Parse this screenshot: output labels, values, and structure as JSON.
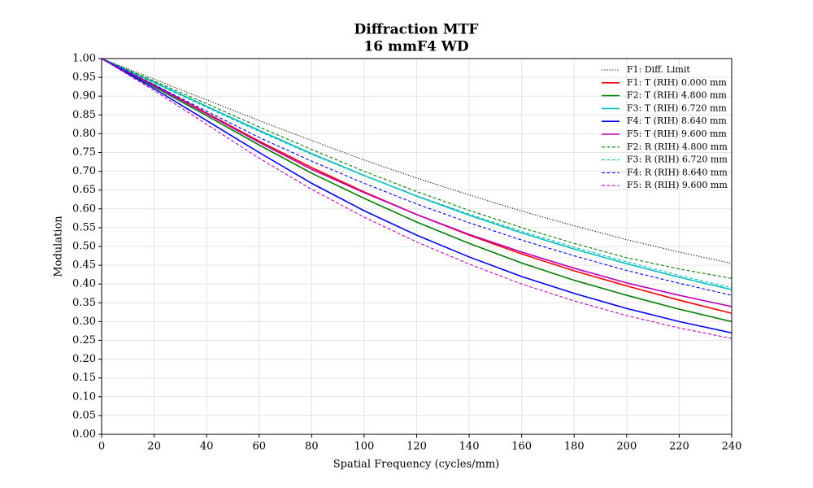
{
  "chart_data": {
    "type": "line",
    "title": "Diffraction MTF",
    "subtitle": "16 mmF4 WD",
    "xlabel": "Spatial Frequency (cycles/mm)",
    "ylabel": "Modulation",
    "x": [
      0,
      20,
      40,
      60,
      80,
      100,
      120,
      140,
      160,
      180,
      200,
      220,
      240
    ],
    "xlim": [
      0,
      240
    ],
    "xticks": [
      0,
      20,
      40,
      60,
      80,
      100,
      120,
      140,
      160,
      180,
      200,
      220,
      240
    ],
    "ylim": [
      0,
      1
    ],
    "yticks": [
      {
        "value": 0,
        "label": "0.00"
      },
      {
        "value": 0.05,
        "label": "0.05"
      },
      {
        "value": 0.1,
        "label": "0.10"
      },
      {
        "value": 0.15,
        "label": "0.15"
      },
      {
        "value": 0.2,
        "label": "0.20"
      },
      {
        "value": 0.25,
        "label": "0.25"
      },
      {
        "value": 0.3,
        "label": "0.30"
      },
      {
        "value": 0.35,
        "label": "0.35"
      },
      {
        "value": 0.4,
        "label": "0.40"
      },
      {
        "value": 0.45,
        "label": "0.45"
      },
      {
        "value": 0.5,
        "label": "0.50"
      },
      {
        "value": 0.55,
        "label": "0.55"
      },
      {
        "value": 0.6,
        "label": "0.60"
      },
      {
        "value": 0.65,
        "label": "0.65"
      },
      {
        "value": 0.7,
        "label": "0.70"
      },
      {
        "value": 0.75,
        "label": "0.75"
      },
      {
        "value": 0.8,
        "label": "0.80"
      },
      {
        "value": 0.85,
        "label": "0.85"
      },
      {
        "value": 0.9,
        "label": "0.90"
      },
      {
        "value": 0.95,
        "label": "0.95"
      },
      {
        "value": 1,
        "label": "1.00"
      }
    ],
    "grid": true,
    "legend": "upper-right",
    "series": [
      {
        "name": "F1: Diff. Limit",
        "color": "#000000",
        "linestyle": "dotted",
        "values": [
          1,
          0.945,
          0.89,
          0.835,
          0.782,
          0.73,
          0.682,
          0.637,
          0.594,
          0.555,
          0.518,
          0.485,
          0.455
        ]
      },
      {
        "name": "F1: T (RIH) 0.000 mm",
        "color": "#ff0000",
        "linestyle": "solid",
        "values": [
          1,
          0.93,
          0.855,
          0.78,
          0.71,
          0.645,
          0.585,
          0.53,
          0.48,
          0.435,
          0.395,
          0.357,
          0.322
        ]
      },
      {
        "name": "F2: T (RIH) 4.800 mm",
        "color": "#008000",
        "linestyle": "solid",
        "values": [
          1,
          0.925,
          0.848,
          0.77,
          0.695,
          0.628,
          0.565,
          0.508,
          0.456,
          0.41,
          0.37,
          0.333,
          0.3
        ]
      },
      {
        "name": "F3: T (RIH) 6.720 mm",
        "color": "#00bfbf",
        "linestyle": "solid",
        "values": [
          1,
          0.937,
          0.873,
          0.809,
          0.747,
          0.689,
          0.634,
          0.583,
          0.536,
          0.493,
          0.454,
          0.418,
          0.385
        ]
      },
      {
        "name": "F4: T (RIH) 8.640 mm",
        "color": "#0000ff",
        "linestyle": "solid",
        "values": [
          1,
          0.92,
          0.835,
          0.75,
          0.668,
          0.595,
          0.53,
          0.472,
          0.42,
          0.375,
          0.335,
          0.3,
          0.27
        ]
      },
      {
        "name": "F5: T (RIH) 9.600 mm",
        "color": "#bf00bf",
        "linestyle": "solid",
        "values": [
          1,
          0.928,
          0.853,
          0.777,
          0.705,
          0.643,
          0.585,
          0.532,
          0.485,
          0.442,
          0.403,
          0.37,
          0.34
        ]
      },
      {
        "name": "F2: R (RIH) 4.800 mm",
        "color": "#008000",
        "linestyle": "dashed",
        "values": [
          1,
          0.94,
          0.88,
          0.818,
          0.758,
          0.7,
          0.646,
          0.596,
          0.55,
          0.508,
          0.47,
          0.44,
          0.415
        ]
      },
      {
        "name": "F3: R (RIH) 6.720 mm",
        "color": "#00bfbf",
        "linestyle": "dashed",
        "values": [
          1,
          0.935,
          0.87,
          0.806,
          0.745,
          0.688,
          0.635,
          0.586,
          0.54,
          0.498,
          0.459,
          0.423,
          0.39
        ]
      },
      {
        "name": "F4: R (RIH) 8.640 mm",
        "color": "#0000ff",
        "linestyle": "dashed",
        "values": [
          1,
          0.93,
          0.86,
          0.79,
          0.727,
          0.668,
          0.613,
          0.563,
          0.517,
          0.475,
          0.436,
          0.402,
          0.37
        ]
      },
      {
        "name": "F5: R (RIH) 9.600 mm",
        "color": "#bf00bf",
        "linestyle": "dashed",
        "values": [
          1,
          0.915,
          0.825,
          0.735,
          0.652,
          0.578,
          0.512,
          0.453,
          0.4,
          0.355,
          0.316,
          0.283,
          0.255
        ]
      }
    ]
  }
}
